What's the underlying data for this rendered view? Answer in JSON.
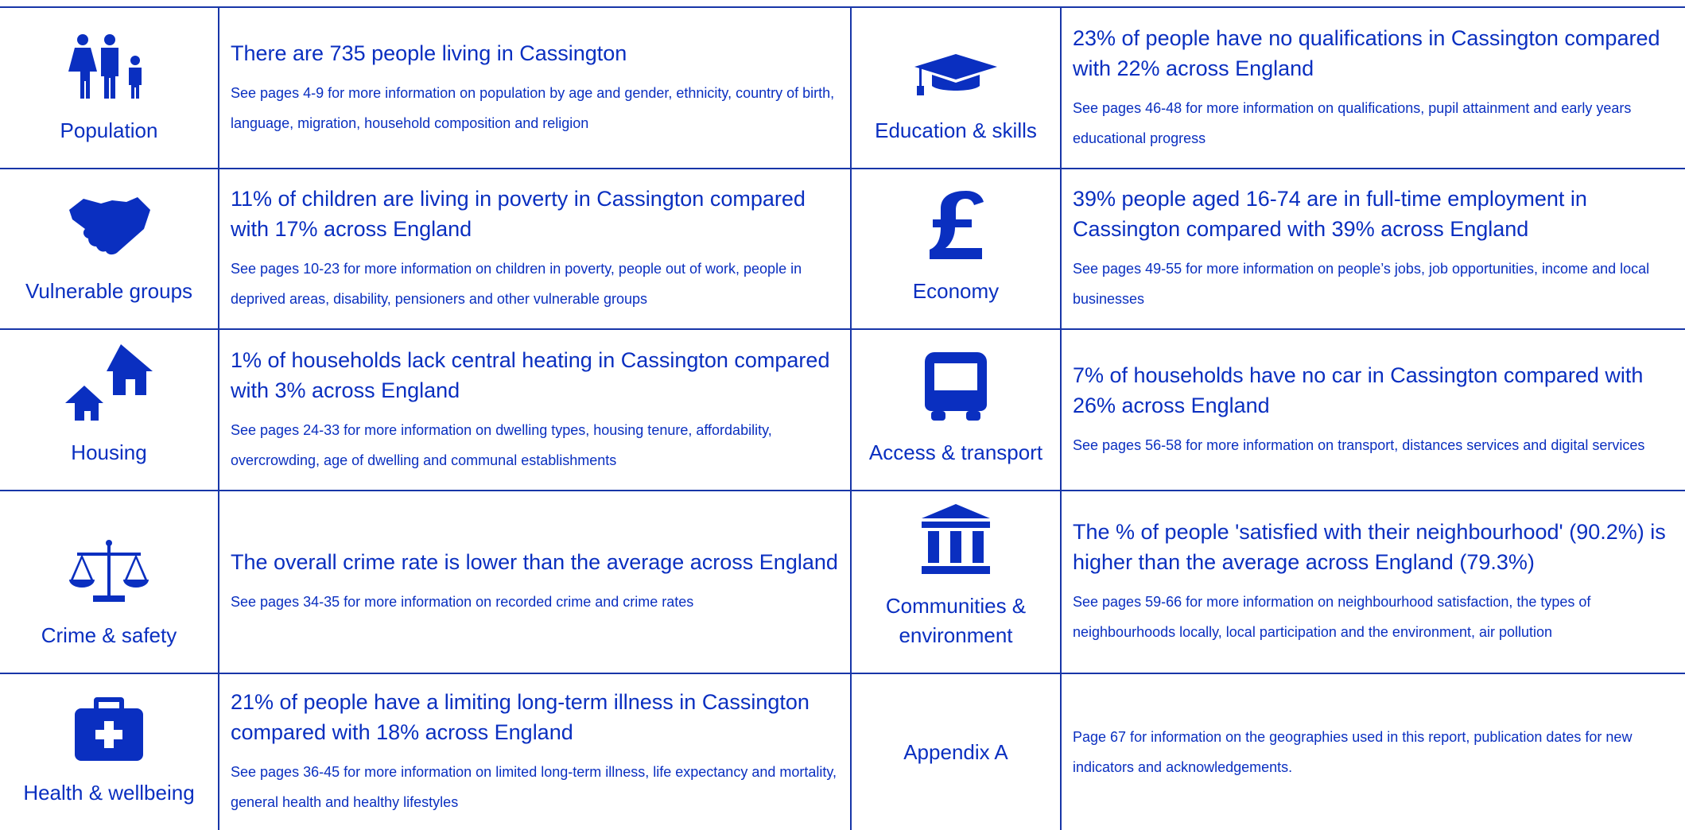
{
  "rows": [
    {
      "left": {
        "label": "Population",
        "headline": "There are 735 people living in Cassington",
        "detail": "See pages 4-9 for more information on population by age and gender, ethnicity, country of birth, language, migration, household composition and religion"
      },
      "right": {
        "label": "Education & skills",
        "headline": "23% of people have no qualifications in Cassington compared with 22% across England",
        "detail": "See pages 46-48 for more information on qualifications, pupil attainment and early years educational progress"
      }
    },
    {
      "left": {
        "label": "Vulnerable groups",
        "headline": "11% of children are living in poverty in Cassington compared with 17% across England",
        "detail": "See pages 10-23 for more information on children in poverty, people out of work, people in deprived areas, disability, pensioners and other vulnerable groups"
      },
      "right": {
        "label": "Economy",
        "headline": "39% people aged 16-74 are in full-time employment in Cassington compared with 39% across England",
        "detail": "See pages 49-55 for more information on people’s jobs, job opportunities, income and local businesses"
      }
    },
    {
      "left": {
        "label": "Housing",
        "headline": "1% of households lack central heating in Cassington compared with 3% across England",
        "detail": "See pages 24-33 for more information on dwelling types, housing tenure, affordability, overcrowding, age of dwelling and communal establishments"
      },
      "right": {
        "label": "Access & transport",
        "headline": "7% of households have no car in Cassington compared with 26% across England",
        "detail": "See pages 56-58 for more information on transport, distances services and digital services"
      }
    },
    {
      "left": {
        "label": "Crime & safety",
        "headline": "The overall crime rate is lower than the average across England",
        "detail": "See pages 34-35 for more information on recorded crime and crime rates"
      },
      "right": {
        "label": "Communities & environment",
        "headline": "The % of people 'satisfied with their neighbourhood' (90.2%) is higher than the average across England (79.3%)",
        "detail": "See pages 59-66 for more information on neighbourhood satisfaction, the types of neighbourhoods locally, local participation and the environment, air pollution"
      }
    },
    {
      "left": {
        "label": "Health & wellbeing",
        "headline": "21% of people have a limiting long-term illness in Cassington compared with 18% across England",
        "detail": "See pages 36-45 for more information on limited long-term illness, life expectancy and mortality, general health and healthy lifestyles"
      },
      "right": {
        "label": "Appendix A",
        "detail": "Page 67 for information on the geographies used in this report, publication dates for new indicators and acknowledgements."
      }
    }
  ]
}
